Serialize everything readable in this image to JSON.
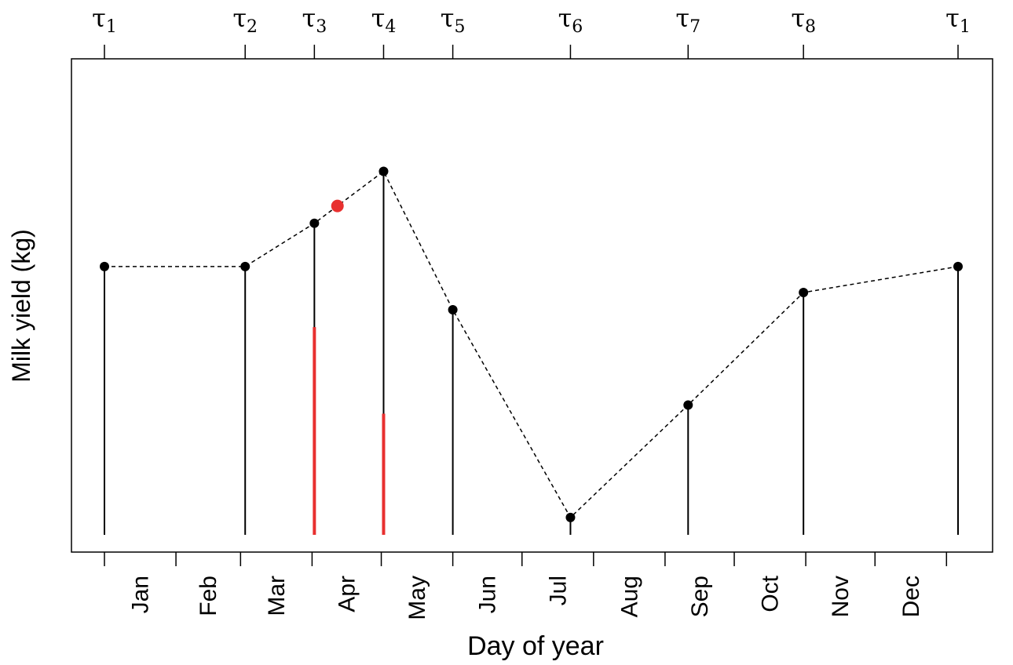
{
  "chart_data": {
    "type": "line",
    "xlabel": "Day of year",
    "ylabel": "Milk yield (kg)",
    "xlim": [
      1,
      365
    ],
    "ylim": [
      0,
      55
    ],
    "y_ticks_shown": false,
    "grid": false,
    "month_ticks": [
      1,
      32,
      60,
      91,
      121,
      152,
      182,
      213,
      244,
      274,
      305,
      335,
      366
    ],
    "month_labels": [
      "Jan",
      "Feb",
      "Mar",
      "Apr",
      "May",
      "Jun",
      "Jul",
      "Aug",
      "Sep",
      "Oct",
      "Nov",
      "Dec"
    ],
    "knots": [
      {
        "label": "τ",
        "sub": "1",
        "x": 1,
        "y": 31
      },
      {
        "label": "τ",
        "sub": "2",
        "x": 62,
        "y": 31
      },
      {
        "label": "τ",
        "sub": "3",
        "x": 92,
        "y": 36
      },
      {
        "label": "τ",
        "sub": "4",
        "x": 122,
        "y": 42
      },
      {
        "label": "τ",
        "sub": "5",
        "x": 152,
        "y": 26
      },
      {
        "label": "τ",
        "sub": "6",
        "x": 203,
        "y": 2
      },
      {
        "label": "τ",
        "sub": "7",
        "x": 254,
        "y": 15
      },
      {
        "label": "τ",
        "sub": "8",
        "x": 304,
        "y": 28
      },
      {
        "label": "τ",
        "sub": "1",
        "x": 371,
        "y": 31
      }
    ],
    "highlight_point": {
      "x": 102,
      "y": 38,
      "color": "#e8302f"
    },
    "highlight_segments": [
      {
        "x": 92,
        "y": 24,
        "color": "#e8302f"
      },
      {
        "x": 122,
        "y": 14,
        "color": "#e8302f"
      }
    ],
    "colors": {
      "knot": "#000000",
      "highlight": "#e8302f"
    }
  }
}
